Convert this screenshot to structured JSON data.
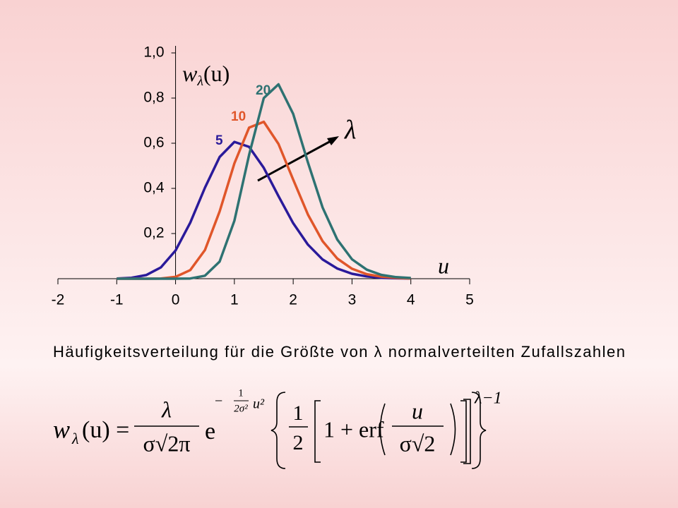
{
  "chart_data": {
    "type": "line",
    "x": [
      -1,
      -0.75,
      -0.5,
      -0.25,
      0,
      0.25,
      0.5,
      0.75,
      1,
      1.25,
      1.5,
      1.75,
      2,
      2.25,
      2.5,
      2.75,
      3,
      3.25,
      3.5,
      3.75,
      4
    ],
    "series": [
      {
        "name": "5",
        "color": "#2a1a9a",
        "values": [
          0.001,
          0.004,
          0.016,
          0.05,
          0.125,
          0.248,
          0.403,
          0.539,
          0.606,
          0.584,
          0.491,
          0.366,
          0.246,
          0.151,
          0.085,
          0.045,
          0.022,
          0.01,
          0.004,
          0.002,
          0.001
        ]
      },
      {
        "name": "10",
        "color": "#e0562a",
        "values": [
          0,
          0,
          0,
          0.001,
          0.008,
          0.038,
          0.127,
          0.298,
          0.511,
          0.669,
          0.695,
          0.597,
          0.439,
          0.284,
          0.166,
          0.089,
          0.044,
          0.02,
          0.009,
          0.004,
          0.001
        ]
      },
      {
        "name": "20",
        "color": "#2e7272",
        "values": [
          0,
          0,
          0,
          0,
          0,
          0.001,
          0.013,
          0.076,
          0.257,
          0.548,
          0.8,
          0.861,
          0.73,
          0.515,
          0.315,
          0.173,
          0.086,
          0.04,
          0.017,
          0.007,
          0.003
        ]
      }
    ],
    "xlim": [
      -2,
      5
    ],
    "xticks": [
      -2,
      -1,
      0,
      1,
      2,
      3,
      4,
      5
    ],
    "ylim": [
      0,
      1
    ],
    "yticks": [
      {
        "value": 0.2,
        "label": "0,2"
      },
      {
        "value": 0.4,
        "label": "0,4"
      },
      {
        "value": 0.6,
        "label": "0,6"
      },
      {
        "value": 0.8,
        "label": "0,8"
      },
      {
        "value": 1,
        "label": "1,0"
      }
    ],
    "y_label": {
      "base": "w",
      "sub": "λ",
      "arg": "(u)"
    },
    "x_label": "u",
    "arrow_label": "λ",
    "caption": "Häufigkeitsverteilung für die Größte von λ normalverteilten Zufallszahlen",
    "formula": {
      "lhs": "w",
      "lhs_sub": "λ",
      "lhs_arg": "(u) =",
      "frac1_num": "λ",
      "frac1_den": "σ√2π",
      "exp_base": "e",
      "exp_sign": "−",
      "exp_num": "1",
      "exp_den": "2σ²",
      "exp_var": "u²",
      "half_num": "1",
      "half_den": "2",
      "erf": "1 + erf",
      "frac2_num": "u",
      "frac2_den": "σ√2",
      "power": "λ−1"
    }
  }
}
